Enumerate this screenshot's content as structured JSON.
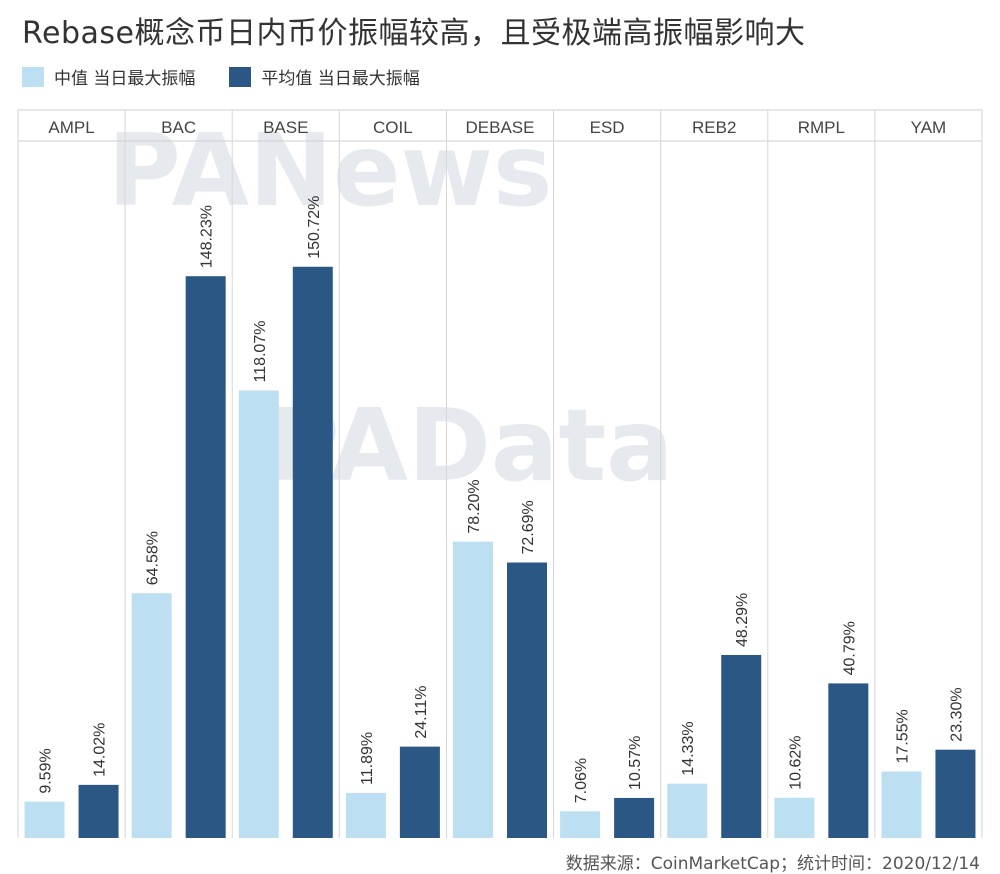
{
  "title": "Rebase概念币日内币价振幅较高，且受极端高振幅影响大",
  "legend": [
    {
      "label": "中值 当日最大振幅",
      "color": "#bcdff2"
    },
    {
      "label": "平均值 当日最大振幅",
      "color": "#2a5783"
    }
  ],
  "watermarks": [
    "PANews",
    "PAData"
  ],
  "footer": "数据来源：CoinMarketCap；统计时间：2020/12/14",
  "chart_data": {
    "type": "bar",
    "categories": [
      "AMPL",
      "BAC",
      "BASE",
      "COIL",
      "DEBASE",
      "ESD",
      "REB2",
      "RMPL",
      "YAM"
    ],
    "series": [
      {
        "name": "中值 当日最大振幅",
        "color": "#bcdff2",
        "values": [
          9.59,
          64.58,
          118.07,
          11.89,
          78.2,
          7.06,
          14.33,
          10.62,
          17.55
        ],
        "labels": [
          "9.59%",
          "64.58%",
          "118.07%",
          "11.89%",
          "78.20%",
          "7.06%",
          "14.33%",
          "10.62%",
          "17.55%"
        ]
      },
      {
        "name": "平均值 当日最大振幅",
        "color": "#2a5783",
        "values": [
          14.02,
          148.23,
          150.72,
          24.11,
          72.69,
          10.57,
          48.29,
          40.79,
          23.3
        ],
        "labels": [
          "14.02%",
          "148.23%",
          "150.72%",
          "24.11%",
          "72.69%",
          "10.57%",
          "48.29%",
          "40.79%",
          "23.30%"
        ]
      }
    ],
    "ylim": [
      0,
      165
    ],
    "grid": false,
    "legend_position": "top-left"
  }
}
